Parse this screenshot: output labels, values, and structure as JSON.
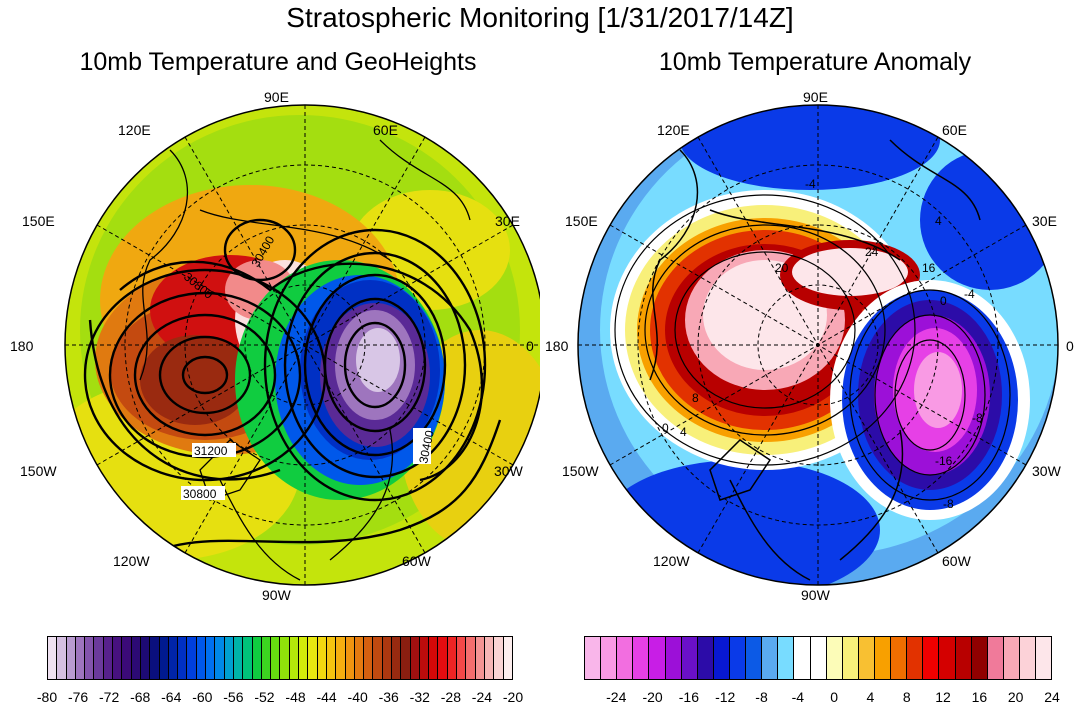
{
  "title": "Stratospheric Monitoring [1/31/2017/14Z]",
  "left_panel": {
    "title": "10mb Temperature and GeoHeights",
    "longitude_labels": [
      "90E",
      "60E",
      "30E",
      "0",
      "30W",
      "60W",
      "90W",
      "120W",
      "150W",
      "180",
      "150E",
      "120E"
    ],
    "contour_labels": [
      "30400",
      "30800",
      "31200",
      "30800",
      "30400"
    ],
    "colorbar": {
      "ticks": [
        "-80",
        "-76",
        "-72",
        "-68",
        "-64",
        "-60",
        "-56",
        "-52",
        "-48",
        "-44",
        "-40",
        "-36",
        "-32",
        "-28",
        "-24",
        "-20"
      ],
      "colors": [
        "#efe1f1",
        "#d5bfe1",
        "#b99bd0",
        "#9e75be",
        "#8354ac",
        "#6b3a9c",
        "#57218c",
        "#47117f",
        "#3b0a78",
        "#2c0a74",
        "#1d0a74",
        "#0a0f7d",
        "#001a8f",
        "#0024a8",
        "#0030c4",
        "#0040dd",
        "#0058ea",
        "#0070f0",
        "#0088e8",
        "#00a0d0",
        "#00b4a8",
        "#00c27a",
        "#10cc40",
        "#3cd420",
        "#66dc10",
        "#90e20a",
        "#b4e80a",
        "#d2ea0a",
        "#e8e810",
        "#f2d810",
        "#f6c410",
        "#f6ae10",
        "#f09410",
        "#e47a10",
        "#d46010",
        "#c04a10",
        "#ac3810",
        "#982a10",
        "#8a1e10",
        "#a01010",
        "#bc0c0c",
        "#d40808",
        "#e40c10",
        "#ee2424",
        "#f44848",
        "#f46e6e",
        "#f49494",
        "#f6b6b6",
        "#fad4d4",
        "#fdeeee"
      ]
    }
  },
  "right_panel": {
    "title": "10mb Temperature Anomaly",
    "longitude_labels": [
      "90E",
      "60E",
      "30E",
      "0",
      "30W",
      "60W",
      "90W",
      "120W",
      "150W",
      "180",
      "150E",
      "120E"
    ],
    "contour_labels": [
      "24",
      "20",
      "-8",
      "-16",
      "-8",
      "-4",
      "0",
      "4",
      "8",
      "16",
      "0",
      "4",
      "-4"
    ],
    "colorbar": {
      "ticks": [
        "-24",
        "-20",
        "-16",
        "-12",
        "-8",
        "-4",
        "0",
        "4",
        "8",
        "12",
        "16",
        "20",
        "24"
      ],
      "colors": [
        "#f9b6ea",
        "#f99ae4",
        "#f26ee0",
        "#e640e6",
        "#c81ee6",
        "#9c10d8",
        "#6a10c8",
        "#2c0ca8",
        "#0818d2",
        "#0a3ae8",
        "#0c5ae6",
        "#5aaaf0",
        "#78dcff",
        "#ffffff",
        "#ffffff",
        "#fcfcb8",
        "#f8f07a",
        "#f8c032",
        "#f8a000",
        "#f06e00",
        "#e23200",
        "#f00000",
        "#d40000",
        "#b80000",
        "#900000",
        "#f07a9a",
        "#f8a8b6",
        "#fcd2d8",
        "#fde6ea"
      ]
    }
  }
}
